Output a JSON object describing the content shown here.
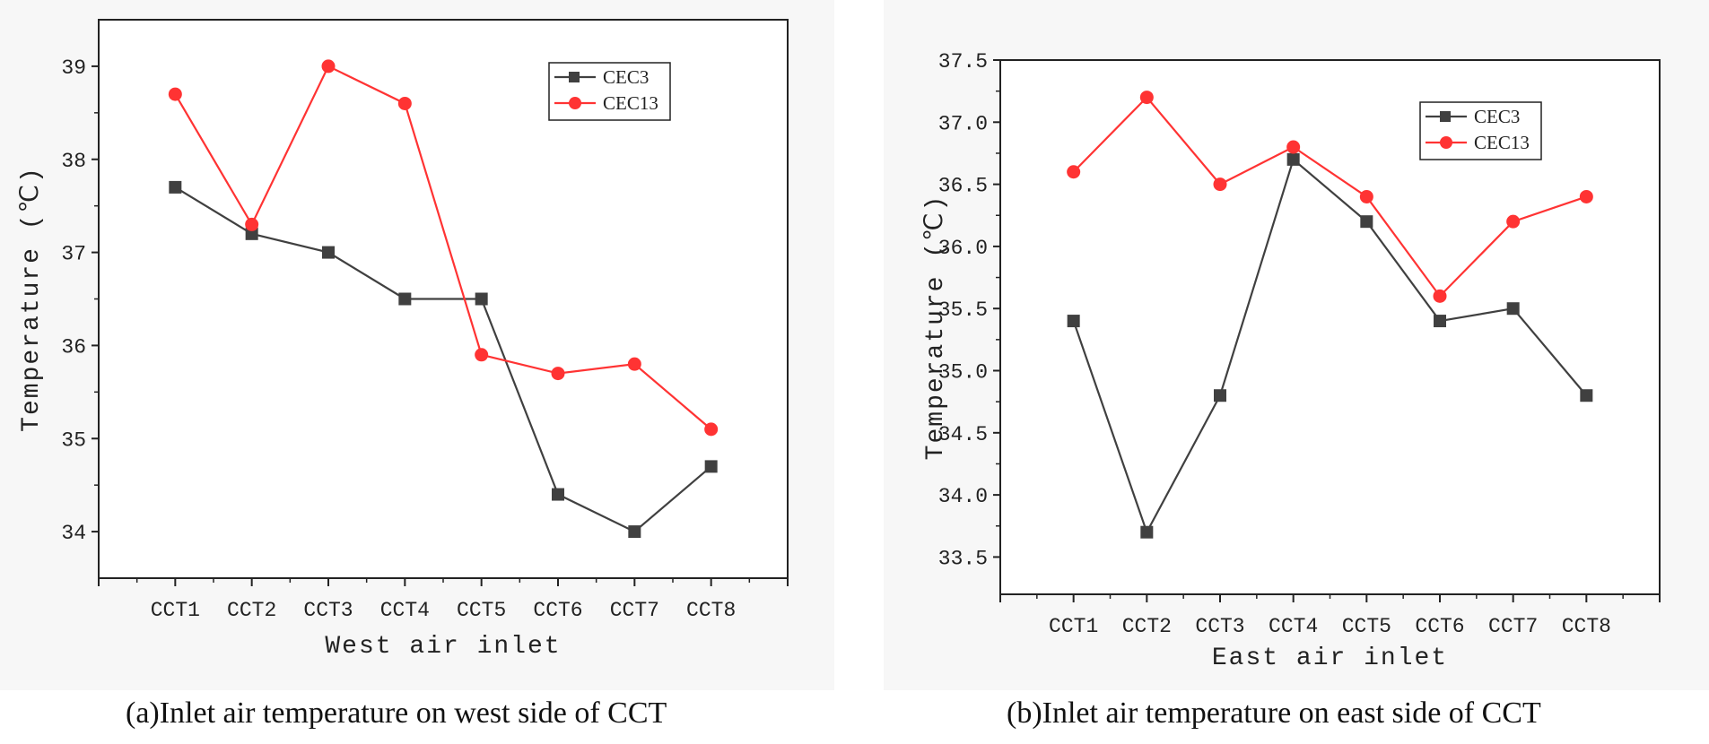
{
  "chart_data": [
    {
      "type": "line",
      "xlabel": "West air inlet",
      "ylabel": "Temperature (℃)",
      "categories": [
        "CCT1",
        "CCT2",
        "CCT3",
        "CCT4",
        "CCT5",
        "CCT6",
        "CCT7",
        "CCT8"
      ],
      "y_ticks": [
        "34",
        "35",
        "36",
        "37",
        "38",
        "39"
      ],
      "ylim": [
        33.5,
        39.5
      ],
      "legend_position": "top-right",
      "series": [
        {
          "name": "CEC3",
          "color": "#404040",
          "marker": "square",
          "values": [
            37.7,
            37.2,
            37.0,
            36.5,
            36.5,
            34.4,
            34.0,
            34.7
          ]
        },
        {
          "name": "CEC13",
          "color": "#ff3333",
          "marker": "circle",
          "values": [
            38.7,
            37.3,
            39.0,
            38.6,
            35.9,
            35.7,
            35.8,
            35.1
          ]
        }
      ],
      "caption": "(a)Inlet air temperature on west side of CCT"
    },
    {
      "type": "line",
      "xlabel": "East air inlet",
      "ylabel": "Temperature (℃)",
      "categories": [
        "CCT1",
        "CCT2",
        "CCT3",
        "CCT4",
        "CCT5",
        "CCT6",
        "CCT7",
        "CCT8"
      ],
      "y_ticks": [
        "33.5",
        "34.0",
        "34.5",
        "35.0",
        "35.5",
        "36.0",
        "36.5",
        "37.0",
        "37.5"
      ],
      "ylim": [
        33.2,
        37.5
      ],
      "legend_position": "top-right",
      "series": [
        {
          "name": "CEC3",
          "color": "#404040",
          "marker": "square",
          "values": [
            35.4,
            33.7,
            34.8,
            36.7,
            36.2,
            35.4,
            35.5,
            34.8
          ]
        },
        {
          "name": "CEC13",
          "color": "#ff3333",
          "marker": "circle",
          "values": [
            36.6,
            37.2,
            36.5,
            36.8,
            36.4,
            35.6,
            36.2,
            36.4
          ]
        }
      ],
      "caption": "(b)Inlet air temperature on east side of CCT"
    }
  ]
}
